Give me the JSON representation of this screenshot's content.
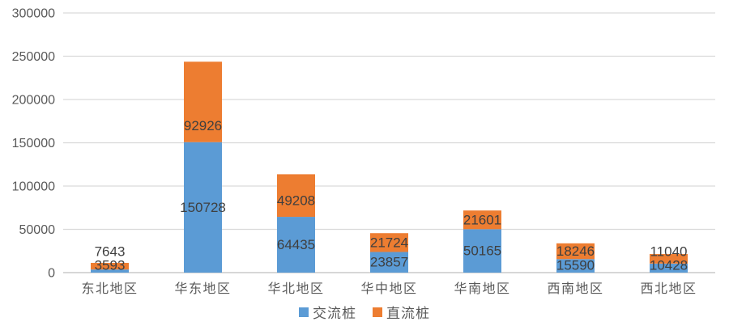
{
  "chart_data": {
    "type": "bar",
    "stacked": true,
    "title": "",
    "xlabel": "",
    "ylabel": "",
    "categories": [
      "东北地区",
      "华东地区",
      "华北地区",
      "华中地区",
      "华南地区",
      "西南地区",
      "西北地区"
    ],
    "series": [
      {
        "name": "交流桩",
        "color": "#5B9BD5",
        "values": [
          3593,
          150728,
          64435,
          23857,
          50165,
          15590,
          10428
        ]
      },
      {
        "name": "直流桩",
        "color": "#ED7D31",
        "values": [
          7643,
          92926,
          49208,
          21724,
          21601,
          18246,
          11040
        ]
      }
    ],
    "totals": [
      11236,
      243654,
      113643,
      45581,
      71766,
      33836,
      21468
    ],
    "ylim": [
      0,
      300000
    ],
    "ytick_step": 50000,
    "yticks": [
      "0",
      "50000",
      "100000",
      "150000",
      "200000",
      "250000",
      "300000"
    ],
    "grid": true,
    "data_labels": true,
    "legend_position": "bottom"
  },
  "colors": {
    "background": "#FFFFFF",
    "gridline": "#D9D9D9",
    "axis_line": "#BFBFBF",
    "tick_text": "#595959",
    "category_text": "#595959",
    "value_label_text": "#3F3F3F",
    "legend_text": "#595959"
  }
}
